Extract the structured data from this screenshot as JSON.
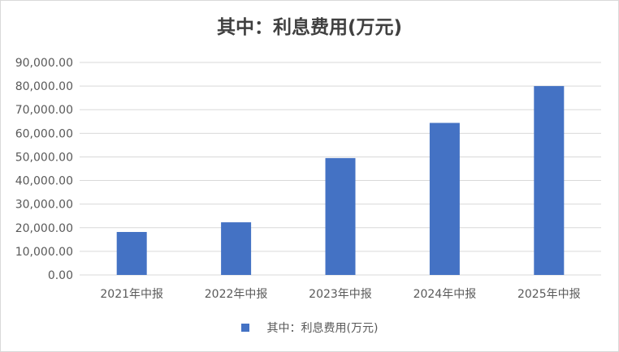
{
  "chart_data": {
    "type": "bar",
    "title": "其中：利息费用(万元)",
    "categories": [
      "2021年中报",
      "2022年中报",
      "2023年中报",
      "2024年中报",
      "2025年中报"
    ],
    "series": [
      {
        "name": "其中：利息费用(万元)",
        "values": [
          18200,
          22300,
          49500,
          64400,
          80000
        ],
        "color": "#4472c4"
      }
    ],
    "ylim": [
      0,
      90000
    ],
    "yticks": [
      "0.00",
      "10,000.00",
      "20,000.00",
      "30,000.00",
      "40,000.00",
      "50,000.00",
      "60,000.00",
      "70,000.00",
      "80,000.00",
      "90,000.00"
    ],
    "ytick_values": [
      0,
      10000,
      20000,
      30000,
      40000,
      50000,
      60000,
      70000,
      80000,
      90000
    ],
    "xlabel": "",
    "ylabel": "",
    "grid": true,
    "legend_position": "bottom"
  }
}
